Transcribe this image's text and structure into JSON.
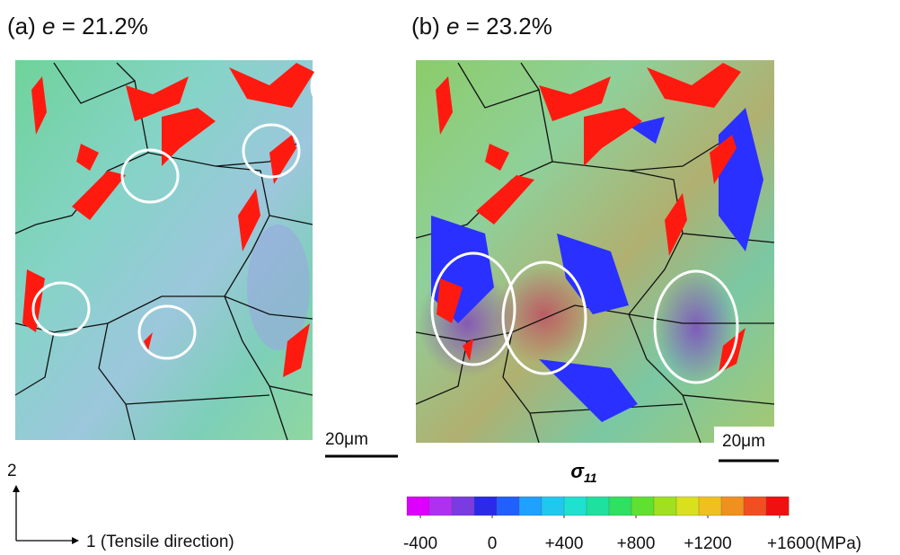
{
  "panels": [
    {
      "label": "(a)",
      "strain_symbol": "e",
      "strain_value": "= 21.2%",
      "scale_bar": "20μm"
    },
    {
      "label": "(b)",
      "strain_symbol": "e",
      "strain_value": "= 23.2%",
      "scale_bar": "20μm"
    }
  ],
  "axes": {
    "vertical": "2",
    "horizontal": "1 (Tensile direction)"
  },
  "colorbar": {
    "symbol": "σ",
    "subscript": "11",
    "clim": [
      -475,
      1650
    ],
    "colors": [
      "#dd00ff",
      "#b030f0",
      "#7a3ce0",
      "#2a2ae8",
      "#2060ff",
      "#20a0ff",
      "#20c8f0",
      "#20e0d0",
      "#20e0a0",
      "#30e060",
      "#60e030",
      "#a0e020",
      "#d8e020",
      "#f0c020",
      "#f09020",
      "#f05020",
      "#f01010"
    ],
    "ticks": [
      -400,
      0,
      {
        "value": 400,
        "label": "+400"
      },
      {
        "value": 800,
        "label": "+800"
      },
      {
        "value": 1200,
        "label": "+1200"
      },
      {
        "value": 1600,
        "label": "+1600(MPa)"
      }
    ]
  }
}
